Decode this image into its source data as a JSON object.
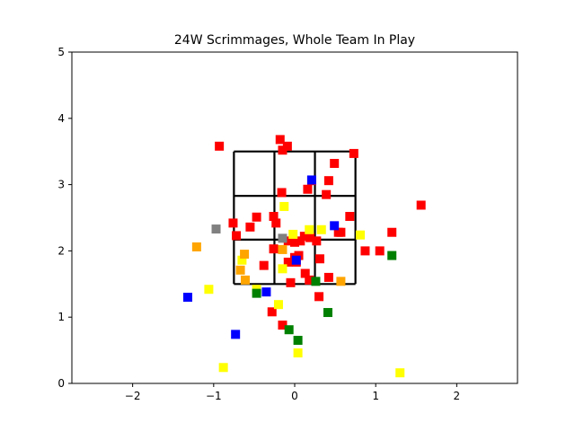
{
  "chart_data": {
    "type": "scatter",
    "title": "24W Scrimmages, Whole Team In Play",
    "xlabel": "",
    "ylabel": "",
    "xlim": [
      -2.75,
      2.75
    ],
    "ylim": [
      0,
      5
    ],
    "xticks": [
      -2,
      -1,
      0,
      1,
      2
    ],
    "xtick_labels": [
      "−2",
      "−1",
      "0",
      "1",
      "2"
    ],
    "yticks": [
      0,
      1,
      2,
      3,
      4,
      5
    ],
    "ytick_labels": [
      "0",
      "1",
      "2",
      "3",
      "4",
      "5"
    ],
    "grid": false,
    "legend": "none",
    "strike_zone": {
      "x": [
        -0.75,
        -0.25,
        0.25,
        0.75
      ],
      "y": [
        1.5,
        2.17,
        2.83,
        3.5
      ]
    },
    "series": [
      {
        "color": "#ff0000",
        "points": [
          [
            -0.93,
            3.58
          ],
          [
            -0.18,
            3.68
          ],
          [
            -0.09,
            3.58
          ],
          [
            -0.15,
            3.52
          ],
          [
            0.49,
            3.32
          ],
          [
            0.73,
            3.47
          ],
          [
            0.21,
            3.06
          ],
          [
            0.42,
            3.06
          ],
          [
            -0.16,
            2.88
          ],
          [
            0.16,
            2.93
          ],
          [
            0.39,
            2.85
          ],
          [
            1.56,
            2.69
          ],
          [
            -0.76,
            2.42
          ],
          [
            -0.47,
            2.51
          ],
          [
            -0.26,
            2.52
          ],
          [
            -0.23,
            2.42
          ],
          [
            0.68,
            2.52
          ],
          [
            -0.55,
            2.36
          ],
          [
            -0.72,
            2.23
          ],
          [
            0.54,
            2.28
          ],
          [
            0.57,
            2.28
          ],
          [
            1.2,
            2.28
          ],
          [
            0.12,
            2.22
          ],
          [
            0.19,
            2.2
          ],
          [
            0.27,
            2.15
          ],
          [
            -0.08,
            2.15
          ],
          [
            0.0,
            2.13
          ],
          [
            0.07,
            2.15
          ],
          [
            -0.26,
            2.03
          ],
          [
            0.87,
            2.0
          ],
          [
            1.05,
            2.0
          ],
          [
            -0.38,
            1.78
          ],
          [
            -0.08,
            1.83
          ],
          [
            0.02,
            1.83
          ],
          [
            0.0,
            1.9
          ],
          [
            0.05,
            1.93
          ],
          [
            0.31,
            1.88
          ],
          [
            0.13,
            1.66
          ],
          [
            0.18,
            1.56
          ],
          [
            0.42,
            1.6
          ],
          [
            -0.05,
            1.52
          ],
          [
            0.3,
            1.31
          ],
          [
            -0.28,
            1.08
          ],
          [
            -0.15,
            0.88
          ]
        ]
      },
      {
        "color": "#0000ff",
        "points": [
          [
            0.21,
            3.07
          ],
          [
            0.49,
            2.38
          ],
          [
            0.02,
            1.86
          ],
          [
            -0.35,
            1.38
          ],
          [
            -1.32,
            1.3
          ],
          [
            -0.73,
            0.74
          ]
        ]
      },
      {
        "color": "#ffff00",
        "points": [
          [
            -0.13,
            2.67
          ],
          [
            0.18,
            2.32
          ],
          [
            0.33,
            2.32
          ],
          [
            -0.02,
            2.25
          ],
          [
            0.81,
            2.24
          ],
          [
            -0.65,
            1.86
          ],
          [
            -0.15,
            1.73
          ],
          [
            -0.47,
            1.42
          ],
          [
            -1.06,
            1.42
          ],
          [
            -0.2,
            1.19
          ],
          [
            0.04,
            0.46
          ],
          [
            1.3,
            0.16
          ],
          [
            -0.88,
            0.24
          ]
        ]
      },
      {
        "color": "#ffa500",
        "points": [
          [
            -1.21,
            2.06
          ],
          [
            -0.62,
            1.95
          ],
          [
            -0.15,
            2.02
          ],
          [
            -0.67,
            1.71
          ],
          [
            -0.61,
            1.56
          ],
          [
            0.57,
            1.54
          ]
        ]
      },
      {
        "color": "#008000",
        "points": [
          [
            1.2,
            1.93
          ],
          [
            0.26,
            1.54
          ],
          [
            -0.47,
            1.36
          ],
          [
            0.41,
            1.07
          ],
          [
            -0.07,
            0.81
          ],
          [
            0.04,
            0.65
          ]
        ]
      },
      {
        "color": "#808080",
        "points": [
          [
            -0.97,
            2.33
          ],
          [
            -0.15,
            2.19
          ]
        ]
      }
    ]
  }
}
